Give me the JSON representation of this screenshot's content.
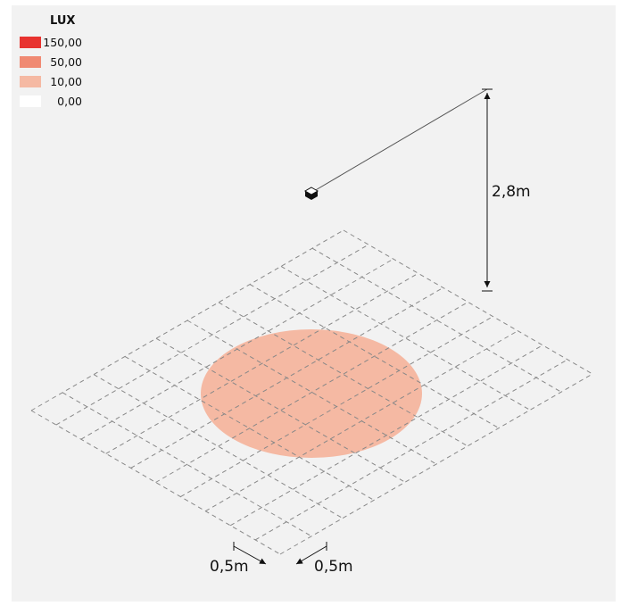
{
  "legend": {
    "title": "LUX",
    "items": [
      {
        "value": "150,00",
        "color": "#e8332f"
      },
      {
        "value": "50,00",
        "color": "#f08a73"
      },
      {
        "value": "10,00",
        "color": "#f5b9a3"
      },
      {
        "value": "0,00",
        "color": "#ffffff"
      }
    ]
  },
  "dimensions": {
    "height": "2,8m",
    "grid_step_left": "0,5m",
    "grid_step_right": "0,5m"
  },
  "colors": {
    "illuminance_area": "#f5b9a3",
    "grid_line": "#888888",
    "background": "#f2f2f2"
  },
  "icons": {
    "luminaire": "luminaire-cube-icon"
  }
}
